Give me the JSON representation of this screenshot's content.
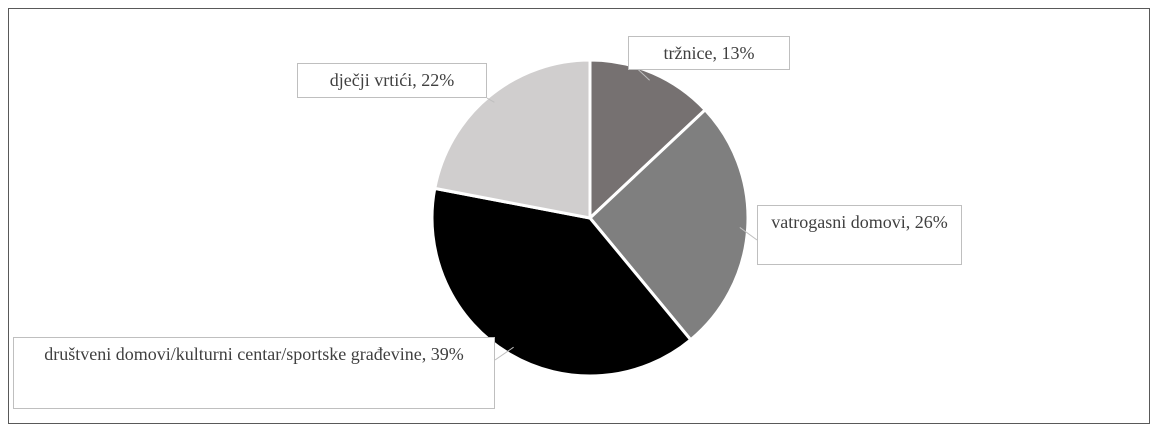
{
  "chart_data": {
    "type": "pie",
    "categories": [
      "tržnice",
      "vatrogasni domovi",
      "društveni domovi/kulturni centar/sportske građevine",
      "dječji vrtići"
    ],
    "values": [
      13,
      26,
      39,
      22
    ],
    "value_labels": [
      "tržnice, 13%",
      "vatrogasni domovi, 26%",
      "društveni domovi/kulturni centar/sportske građevine, 39%",
      "dječji vrtići, 22%"
    ],
    "colors": [
      "#767171",
      "#7f7f7f",
      "#000000",
      "#d0cece"
    ]
  }
}
